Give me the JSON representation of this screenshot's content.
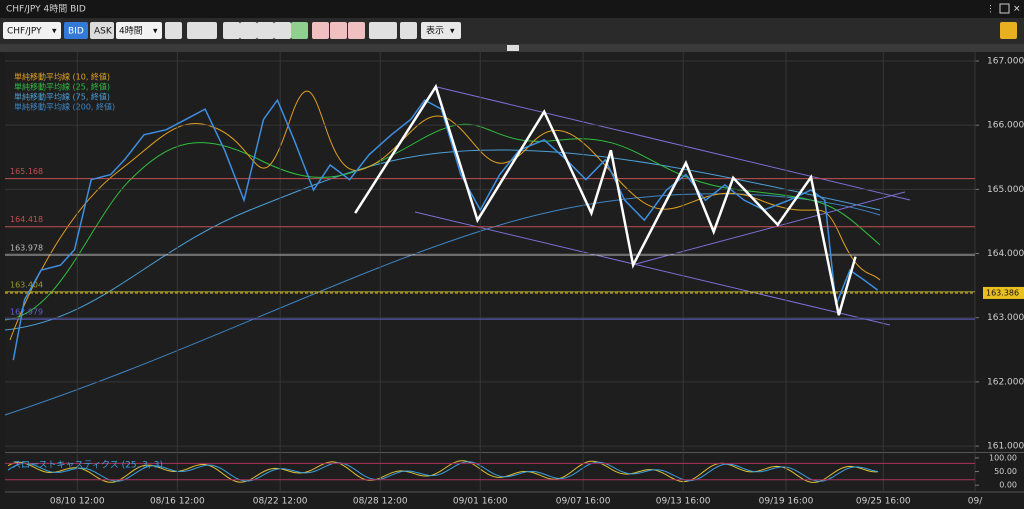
{
  "header": {
    "title": "CHF/JPY 4時間 BID"
  },
  "toolbar": {
    "symbol": "CHF/JPY",
    "bid": "BID",
    "ask": "ASK",
    "timeframe": "4時間",
    "display": "表示"
  },
  "chart_data": {
    "type": "line",
    "indicators": [
      {
        "name": "単純移動平均線 (10, 終値)",
        "color": "#e0a020"
      },
      {
        "name": "単純移動平均線 (25, 終値)",
        "color": "#2fbf3f"
      },
      {
        "name": "単純移動平均線 (75, 終値)",
        "color": "#4aa0d8"
      },
      {
        "name": "単純移動平均線 (200, 終値)",
        "color": "#3e86c6"
      }
    ],
    "x": [
      3,
      7,
      13,
      20,
      25,
      31,
      38,
      43,
      50,
      58,
      65,
      72,
      79,
      86,
      93,
      98,
      104,
      111,
      117,
      124,
      131,
      139,
      146,
      151,
      157,
      164,
      171,
      178,
      185,
      194,
      202,
      209,
      216,
      223,
      230,
      238,
      245,
      252,
      259,
      266,
      273,
      282,
      290,
      295,
      299,
      304,
      309,
      314
    ],
    "series": [
      {
        "color": "#3d8fe0",
        "values": [
          162.34,
          163.28,
          163.74,
          163.82,
          164.06,
          165.15,
          165.23,
          165.46,
          165.85,
          165.93,
          166.09,
          166.25,
          165.61,
          164.83,
          166.09,
          166.39,
          165.77,
          164.99,
          165.38,
          165.15,
          165.54,
          165.85,
          166.09,
          166.39,
          166.25,
          165.23,
          164.68,
          165.23,
          165.61,
          165.77,
          165.46,
          165.15,
          165.46,
          164.83,
          164.52,
          164.99,
          165.23,
          164.83,
          165.07,
          164.83,
          164.68,
          164.83,
          164.99,
          164.83,
          163.2,
          163.74,
          163.59,
          163.43
        ]
      }
    ],
    "zigzag": {
      "color": "#ffffff",
      "x": [
        126,
        155,
        170,
        194,
        211,
        218,
        226,
        245,
        255,
        262,
        278,
        290,
        300,
        306
      ],
      "values": [
        164.63,
        166.6,
        164.52,
        166.21,
        164.63,
        165.61,
        163.82,
        165.41,
        164.34,
        165.18,
        164.45,
        165.19,
        163.04,
        163.95
      ]
    },
    "levels": [
      {
        "value": 165.168,
        "color": "#c05050"
      },
      {
        "value": 164.418,
        "color": "#c05050"
      },
      {
        "value": 163.978,
        "color": "#bbbbbb"
      },
      {
        "value": 163.404,
        "color": "#9a9a30"
      },
      {
        "value": 162.979,
        "color": "#6060d0"
      }
    ],
    "current": {
      "value": 163.386,
      "color": "#e8c020"
    },
    "xlim": [
      0,
      349
    ],
    "ylim": [
      160.9,
      167.14
    ],
    "yticks": [
      {
        "value": 167,
        "label": "167.000"
      },
      {
        "value": 166,
        "label": "166.000"
      },
      {
        "value": 165,
        "label": "165.000"
      },
      {
        "value": 164,
        "label": "164.000"
      },
      {
        "value": 163,
        "label": "163.000"
      },
      {
        "value": 162,
        "label": "162.000"
      },
      {
        "value": 161,
        "label": "161.000"
      }
    ],
    "xticks": [
      {
        "value": 26,
        "label": "08/10 12:00"
      },
      {
        "value": 62,
        "label": "08/16 12:00"
      },
      {
        "value": 99,
        "label": "08/22 12:00"
      },
      {
        "value": 135,
        "label": "08/28 12:00"
      },
      {
        "value": 171,
        "label": "09/01 16:00"
      },
      {
        "value": 208,
        "label": "09/07 16:00"
      },
      {
        "value": 244,
        "label": "09/13 16:00"
      },
      {
        "value": 281,
        "label": "09/19 16:00"
      },
      {
        "value": 316,
        "label": "09/25 16:00"
      },
      {
        "value": 349,
        "label": "09/"
      }
    ],
    "grid": true,
    "oscillator": {
      "title": "スローストキャスティクス (25, 3, 3)",
      "ylim": [
        -25,
        118
      ],
      "yticks": [
        {
          "value": 100,
          "label": "100.00"
        },
        {
          "value": 50,
          "label": "50.00"
        },
        {
          "value": 0,
          "label": "0.00"
        }
      ],
      "levels": [
        80,
        20
      ]
    }
  }
}
